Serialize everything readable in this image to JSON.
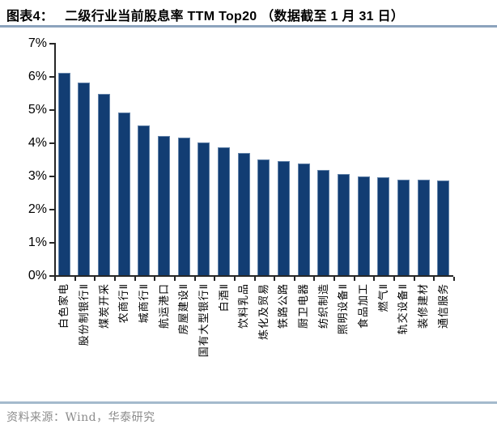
{
  "header": {
    "tag": "图表4：",
    "title": "二级行业当前股息率 TTM Top20 （数据截至 1 月 31 日）"
  },
  "footer": {
    "source": "资料来源：Wind，华泰研究"
  },
  "colors": {
    "bar": "#123d73",
    "axis": "#262626",
    "header_rule": "#8ca3bd",
    "footer_rule": "#a4bacd",
    "footer_text": "#8c8c8c"
  },
  "chart_data": {
    "type": "bar",
    "title": "二级行业当前股息率 TTM Top20（数据截至 1 月 31 日）",
    "categories": [
      "白色家电",
      "股份制银行Ⅱ",
      "煤炭开采",
      "农商行Ⅱ",
      "城商行Ⅱ",
      "航运港口",
      "房屋建设Ⅱ",
      "国有大型银行Ⅱ",
      "白酒Ⅱ",
      "饮料乳品",
      "炼化及贸易",
      "铁路公路",
      "厨卫电器",
      "纺织制造",
      "照明设备Ⅱ",
      "食品加工",
      "燃气Ⅱ",
      "轨交设备Ⅱ",
      "装修建材",
      "通信服务"
    ],
    "values": [
      6.1,
      5.8,
      5.47,
      4.91,
      4.52,
      4.2,
      4.14,
      3.99,
      3.85,
      3.68,
      3.48,
      3.44,
      3.36,
      3.17,
      3.05,
      2.97,
      2.94,
      2.89,
      2.87,
      2.85
    ],
    "value_unit": "%",
    "xlabel": "",
    "ylabel": "",
    "ylim": [
      0,
      7
    ],
    "ytick_labels": [
      "0%",
      "1%",
      "2%",
      "3%",
      "4%",
      "5%",
      "6%",
      "7%"
    ],
    "grid": false,
    "legend": false,
    "bar_color": "#123d73"
  }
}
